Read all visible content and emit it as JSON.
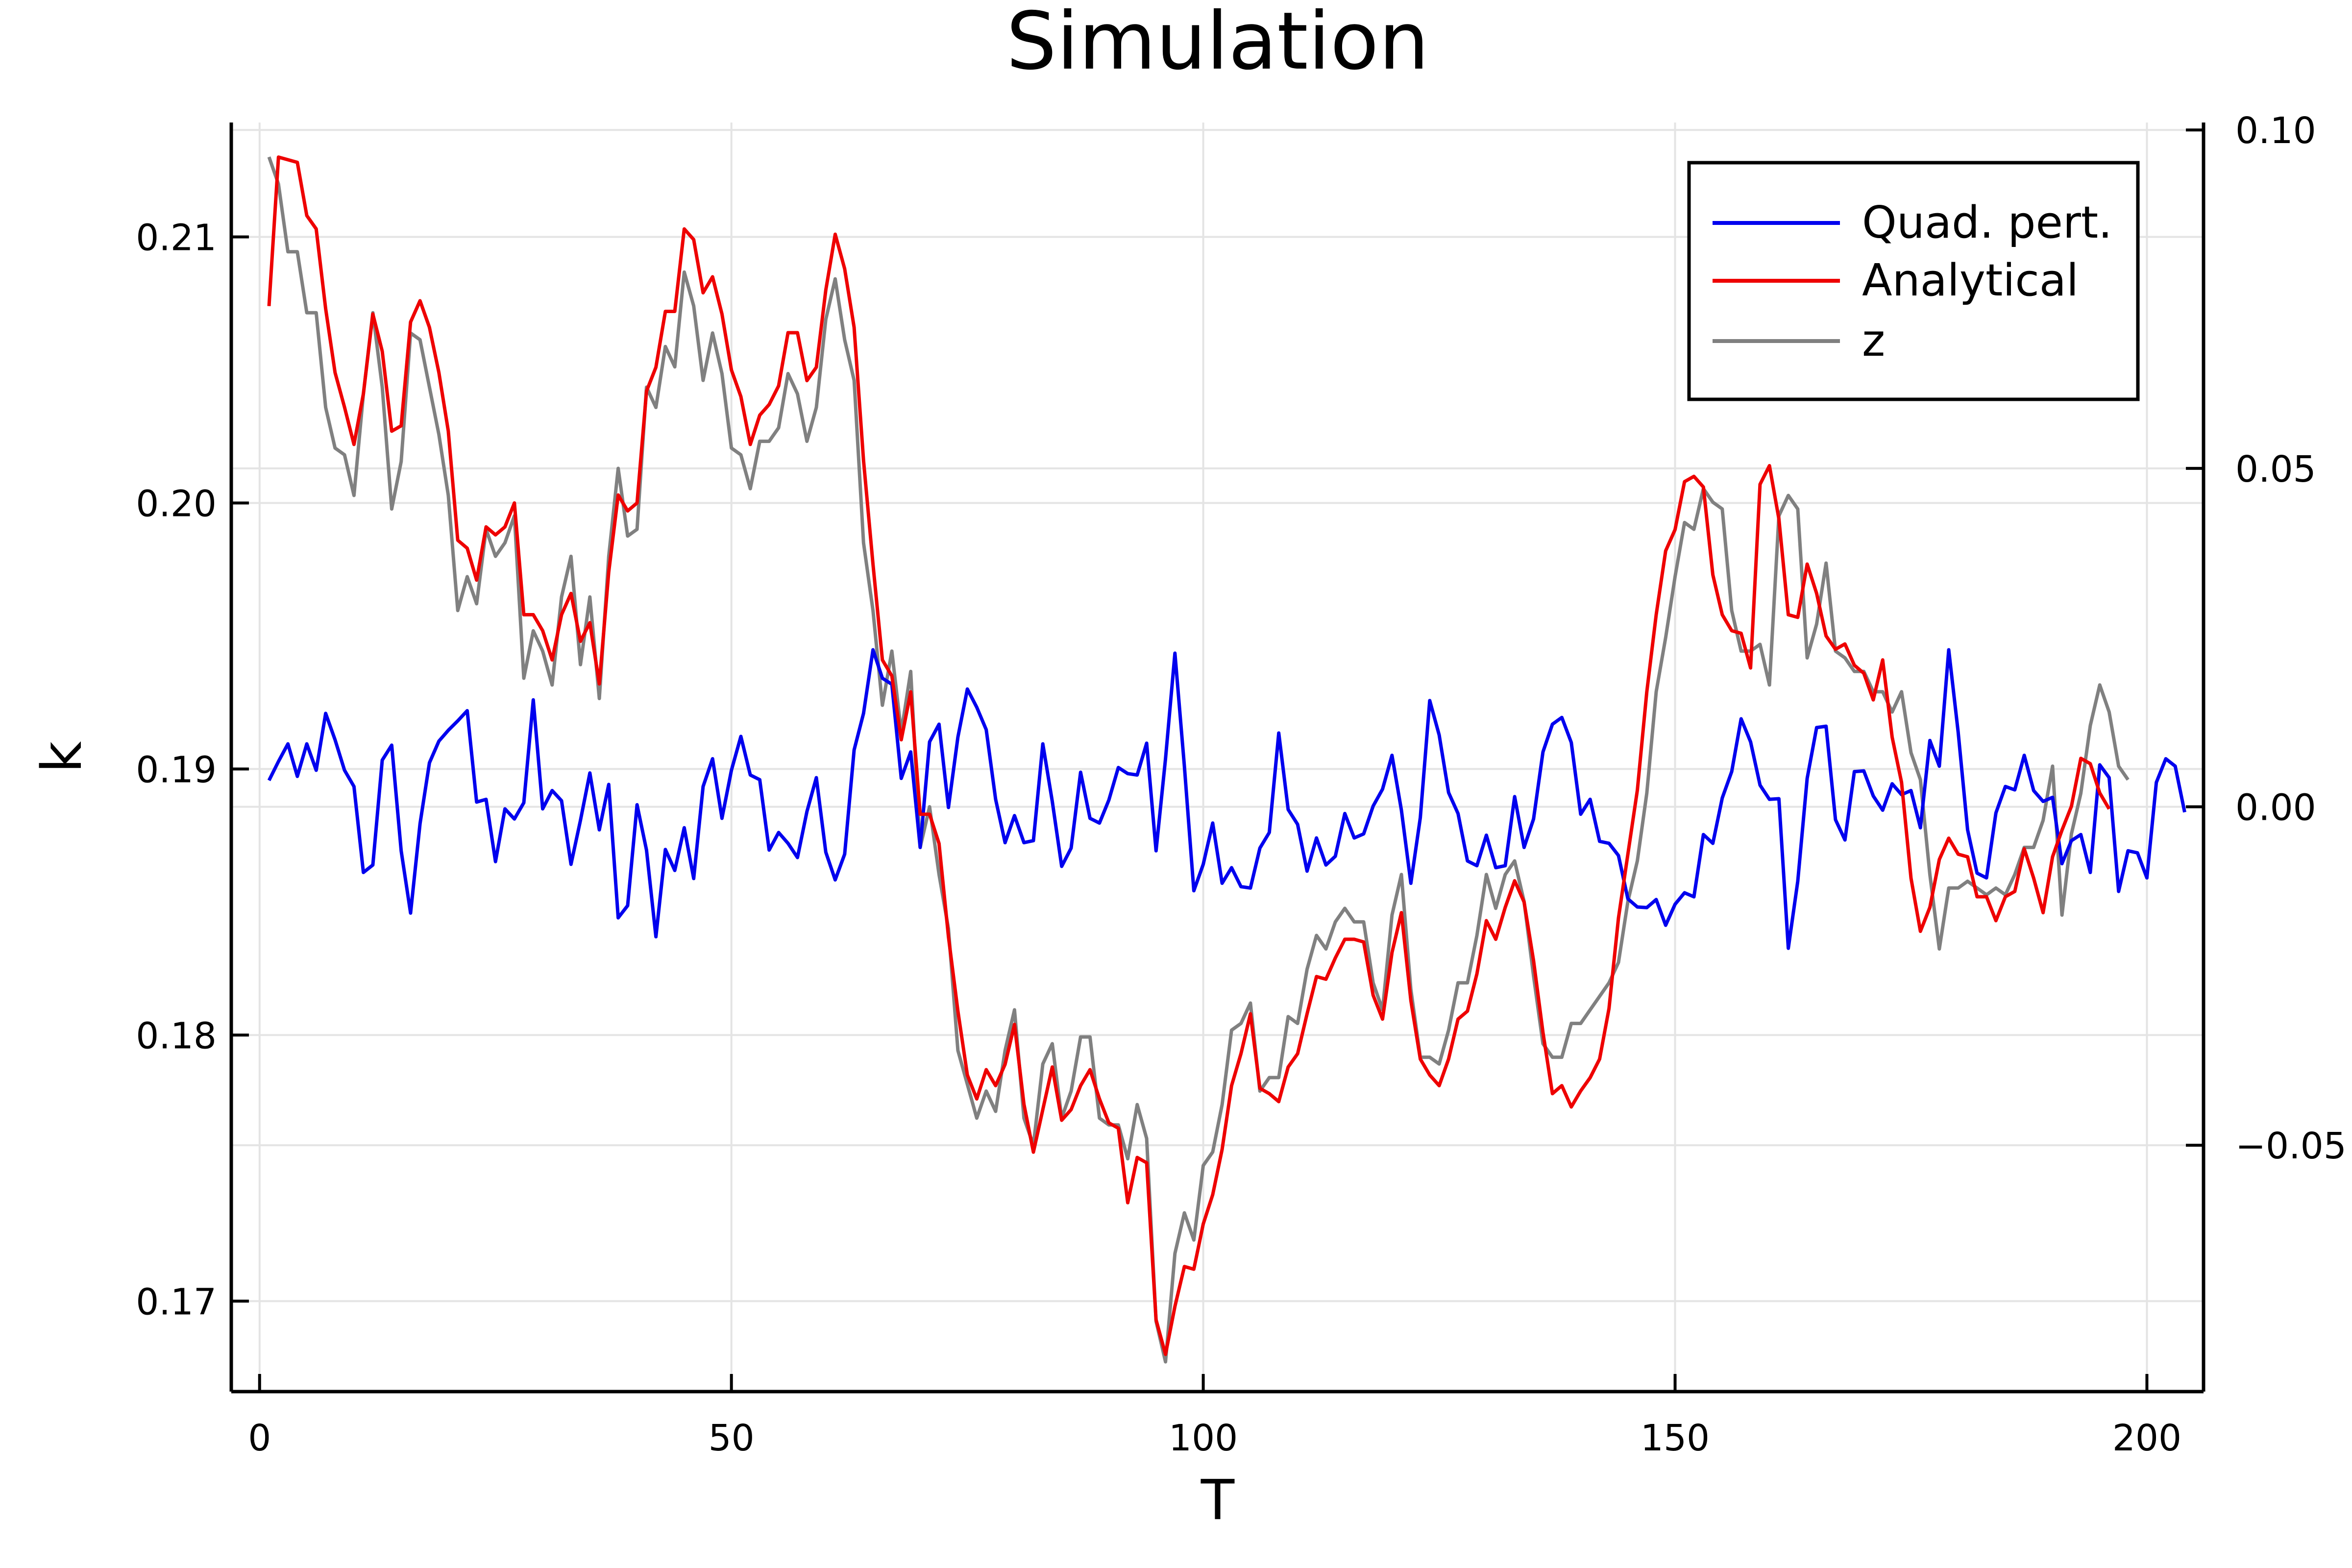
{
  "chart_data": {
    "type": "line",
    "title": "Simulation",
    "xlabel": "T",
    "ylabel": "k",
    "y2label": "",
    "xlim": [
      -3,
      206
    ],
    "ylim": [
      0.1666,
      0.2143
    ],
    "y2lim": [
      -0.0864,
      0.1011
    ],
    "xticks": [
      0,
      50,
      100,
      150,
      200
    ],
    "xtick_labels": [
      "0",
      "50",
      "100",
      "150",
      "200"
    ],
    "yticks": [
      0.17,
      0.18,
      0.19,
      0.2,
      0.21
    ],
    "ytick_labels": [
      "0.17",
      "0.18",
      "0.19",
      "0.20",
      "0.21"
    ],
    "y2ticks": [
      -0.05,
      0.0,
      0.05,
      0.1
    ],
    "y2tick_labels": [
      "−0.05",
      "0.00",
      "0.05",
      "0.10"
    ],
    "grid": true,
    "legend_position": "top-right",
    "x_start": 1,
    "series": [
      {
        "name": "Quad. pert.",
        "axis": "right",
        "color": "#0000ee",
        "values": [
          0.0039,
          0.0067,
          0.0093,
          0.0045,
          0.0093,
          0.0054,
          0.0138,
          0.0099,
          0.0054,
          0.003,
          -0.0097,
          -0.0086,
          0.0069,
          0.0091,
          -0.0065,
          -0.0157,
          -0.0025,
          0.0065,
          0.0097,
          0.0113,
          0.0127,
          0.0142,
          0.0007,
          0.0011,
          -0.0081,
          -0.0003,
          -0.0018,
          0.0006,
          0.0158,
          -0.0003,
          0.0024,
          0.0009,
          -0.0085,
          -0.002,
          0.005,
          -0.0034,
          0.0033,
          -0.0164,
          -0.0146,
          0.0003,
          -0.0064,
          -0.0192,
          -0.0063,
          -0.0094,
          -0.0031,
          -0.0106,
          0.003,
          0.0071,
          -0.0017,
          0.0054,
          0.0104,
          0.0047,
          0.004,
          -0.0064,
          -0.0038,
          -0.0054,
          -0.0075,
          -0.0007,
          0.0043,
          -0.0067,
          -0.0108,
          -0.007,
          0.0084,
          0.0138,
          0.0232,
          0.019,
          0.0181,
          0.0042,
          0.0081,
          -0.006,
          0.0096,
          0.0122,
          -0.0001,
          0.0103,
          0.0174,
          0.0147,
          0.0114,
          0.0011,
          -0.0053,
          -0.0013,
          -0.0053,
          -0.005,
          0.0093,
          0.0008,
          -0.0088,
          -0.0061,
          0.0051,
          -0.0017,
          -0.0024,
          0.001,
          0.0058,
          0.0049,
          0.0047,
          0.0094,
          -0.0065,
          0.0071,
          0.0227,
          0.006,
          -0.0124,
          -0.0085,
          -0.0024,
          -0.0113,
          -0.009,
          -0.0118,
          -0.012,
          -0.0061,
          -0.0038,
          0.0109,
          -0.0004,
          -0.0026,
          -0.0095,
          -0.0046,
          -0.0086,
          -0.0073,
          -0.001,
          -0.0046,
          -0.004,
          0.0001,
          0.0026,
          0.0076,
          -0.0005,
          -0.0113,
          -0.0016,
          0.0157,
          0.0106,
          0.0021,
          -0.001,
          -0.008,
          -0.0087,
          -0.0042,
          -0.009,
          -0.0087,
          0.0015,
          -0.006,
          -0.0018,
          0.0081,
          0.0122,
          0.0132,
          0.0095,
          -0.0011,
          0.0011,
          -0.0051,
          -0.0054,
          -0.0072,
          -0.0136,
          -0.0148,
          -0.0149,
          -0.0137,
          -0.0175,
          -0.0144,
          -0.0127,
          -0.0133,
          -0.0041,
          -0.0054,
          0.0013,
          0.0052,
          0.013,
          0.0096,
          0.0032,
          0.0011,
          0.0012,
          -0.0209,
          -0.011,
          0.0042,
          0.0117,
          0.0119,
          -0.0019,
          -0.0049,
          0.0052,
          0.0053,
          0.0016,
          -0.0005,
          0.0034,
          0.0018,
          0.0024,
          -0.0031,
          0.0098,
          0.006,
          0.0232,
          0.011,
          -0.0034,
          -0.0098,
          -0.0105,
          -0.0009,
          0.003,
          0.0025,
          0.0076,
          0.0024,
          0.0008,
          0.0014,
          -0.0084,
          -0.005,
          -0.0041,
          -0.0097,
          0.0062,
          0.0043,
          -0.0125,
          -0.0065,
          -0.0068,
          -0.0105,
          0.0036,
          0.0071,
          0.006,
          -0.0008
        ]
      },
      {
        "name": "Analytical",
        "axis": "left",
        "color": "#ee0000",
        "values": [
          0.2074,
          0.213,
          0.2129,
          0.2128,
          0.2108,
          0.2103,
          0.2073,
          0.2049,
          0.2036,
          0.2022,
          0.2041,
          0.2071,
          0.2057,
          0.2027,
          0.2029,
          0.2068,
          0.2076,
          0.2066,
          0.2049,
          0.2027,
          0.1986,
          0.1983,
          0.1971,
          0.1991,
          0.1988,
          0.1991,
          0.2,
          0.1958,
          0.1958,
          0.1952,
          0.1941,
          0.1958,
          0.1966,
          0.1948,
          0.1955,
          0.1932,
          0.1974,
          0.2003,
          0.1997,
          0.2,
          0.2042,
          0.2051,
          0.2072,
          0.2072,
          0.2103,
          0.2099,
          0.2079,
          0.2085,
          0.2071,
          0.205,
          0.204,
          0.2022,
          0.2033,
          0.2037,
          0.2044,
          0.2064,
          0.2064,
          0.2046,
          0.2051,
          0.208,
          0.2101,
          0.2088,
          0.2066,
          0.2016,
          0.1977,
          0.1941,
          0.1935,
          0.1911,
          0.1929,
          0.1883,
          0.1883,
          0.1872,
          0.1837,
          0.1809,
          0.1785,
          0.1776,
          0.1787,
          0.1781,
          0.1789,
          0.1804,
          0.1774,
          0.1756,
          0.1772,
          0.1788,
          0.1768,
          0.1772,
          0.1781,
          0.1787,
          0.1776,
          0.1767,
          0.1765,
          0.1737,
          0.1754,
          0.1752,
          0.1693,
          0.168,
          0.1698,
          0.1713,
          0.1712,
          0.1729,
          0.174,
          0.1757,
          0.1781,
          0.1793,
          0.1808,
          0.178,
          0.1778,
          0.1775,
          0.1788,
          0.1793,
          0.1808,
          0.1822,
          0.1821,
          0.1829,
          0.1836,
          0.1836,
          0.1835,
          0.1815,
          0.1806,
          0.1831,
          0.1846,
          0.1813,
          0.1791,
          0.1785,
          0.1781,
          0.1791,
          0.1806,
          0.1809,
          0.1823,
          0.1843,
          0.1836,
          0.1848,
          0.1858,
          0.185,
          0.1828,
          0.1801,
          0.1778,
          0.1781,
          0.1773,
          0.1779,
          0.1784,
          0.1791,
          0.181,
          0.1844,
          0.1868,
          0.1892,
          0.1929,
          0.1958,
          0.1982,
          0.199,
          0.2008,
          0.201,
          0.2006,
          0.1973,
          0.1958,
          0.1952,
          0.1951,
          0.1938,
          0.2007,
          0.2014,
          0.1994,
          0.1958,
          0.1957,
          0.1977,
          0.1966,
          0.195,
          0.1945,
          0.1947,
          0.1939,
          0.1936,
          0.1926,
          0.1941,
          0.1912,
          0.1895,
          0.1859,
          0.1839,
          0.1848,
          0.1866,
          0.1874,
          0.1868,
          0.1867,
          0.1852,
          0.1852,
          0.1843,
          0.1852,
          0.1854,
          0.187,
          0.1859,
          0.1846,
          0.1867,
          0.1877,
          0.1886,
          0.1904,
          0.1902,
          0.1891,
          0.1885
        ]
      },
      {
        "name": "z",
        "axis": "right",
        "color": "#808080",
        "values": [
          0.096,
          0.092,
          0.082,
          0.082,
          0.073,
          0.073,
          0.059,
          0.053,
          0.052,
          0.046,
          0.061,
          0.073,
          0.062,
          0.044,
          0.051,
          0.07,
          0.069,
          0.062,
          0.055,
          0.046,
          0.029,
          0.034,
          0.03,
          0.041,
          0.037,
          0.039,
          0.043,
          0.019,
          0.026,
          0.023,
          0.018,
          0.031,
          0.037,
          0.021,
          0.031,
          0.016,
          0.037,
          0.05,
          0.04,
          0.041,
          0.062,
          0.059,
          0.068,
          0.065,
          0.079,
          0.074,
          0.063,
          0.07,
          0.064,
          0.053,
          0.052,
          0.047,
          0.054,
          0.054,
          0.056,
          0.064,
          0.061,
          0.054,
          0.059,
          0.072,
          0.078,
          0.069,
          0.063,
          0.039,
          0.029,
          0.015,
          0.023,
          0.011,
          0.02,
          -0.006,
          0.0,
          -0.01,
          -0.018,
          -0.036,
          -0.041,
          -0.046,
          -0.042,
          -0.045,
          -0.036,
          -0.03,
          -0.046,
          -0.05,
          -0.038,
          -0.035,
          -0.046,
          -0.042,
          -0.034,
          -0.034,
          -0.046,
          -0.047,
          -0.047,
          -0.052,
          -0.044,
          -0.049,
          -0.076,
          -0.082,
          -0.066,
          -0.06,
          -0.064,
          -0.053,
          -0.051,
          -0.044,
          -0.033,
          -0.032,
          -0.029,
          -0.042,
          -0.04,
          -0.04,
          -0.031,
          -0.032,
          -0.024,
          -0.019,
          -0.021,
          -0.017,
          -0.015,
          -0.017,
          -0.017,
          -0.026,
          -0.03,
          -0.016,
          -0.01,
          -0.027,
          -0.037,
          -0.037,
          -0.038,
          -0.033,
          -0.026,
          -0.026,
          -0.019,
          -0.01,
          -0.015,
          -0.01,
          -0.008,
          -0.014,
          -0.025,
          -0.035,
          -0.037,
          -0.037,
          -0.032,
          -0.032,
          -0.03,
          -0.028,
          -0.026,
          -0.023,
          -0.014,
          -0.008,
          0.002,
          0.017,
          0.025,
          0.034,
          0.042,
          0.041,
          0.047,
          0.045,
          0.044,
          0.029,
          0.023,
          0.023,
          0.024,
          0.018,
          0.043,
          0.046,
          0.044,
          0.022,
          0.027,
          0.036,
          0.023,
          0.022,
          0.02,
          0.02,
          0.017,
          0.017,
          0.014,
          0.017,
          0.008,
          0.004,
          -0.01,
          -0.021,
          -0.012,
          -0.012,
          -0.011,
          -0.012,
          -0.013,
          -0.012,
          -0.013,
          -0.01,
          -0.006,
          -0.006,
          -0.002,
          0.006,
          -0.016,
          -0.004,
          0.002,
          0.012,
          0.018,
          0.014,
          0.006,
          0.004
        ]
      }
    ]
  }
}
